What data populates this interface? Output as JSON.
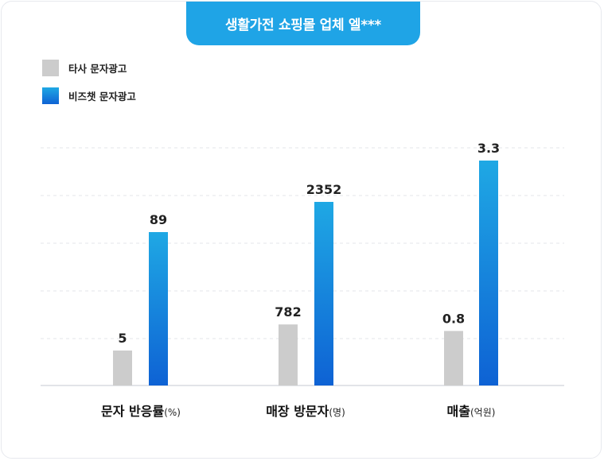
{
  "title": "생활가전 쇼핑몰 업체 엘***",
  "colors": {
    "other": "#cccccc",
    "bizchat_top": "#1fa8e4",
    "bizchat_bottom": "#0e62d4",
    "title_bg": "#1fa4e6"
  },
  "chart_data": {
    "type": "bar",
    "grid": true,
    "legend_position": "top-left",
    "series": [
      {
        "name": "타사 문자광고",
        "color": "#cccccc"
      },
      {
        "name": "비즈챗 문자광고",
        "color": "gradient-blue"
      }
    ],
    "groups": [
      {
        "category": "문자 반응률",
        "unit": "(%)",
        "values": [
          5,
          89
        ]
      },
      {
        "category": "매장 방문자",
        "unit": "(명)",
        "values": [
          782,
          2352
        ]
      },
      {
        "category": "매출",
        "unit": "(억원)",
        "values": [
          0.8,
          3.3
        ]
      }
    ]
  }
}
